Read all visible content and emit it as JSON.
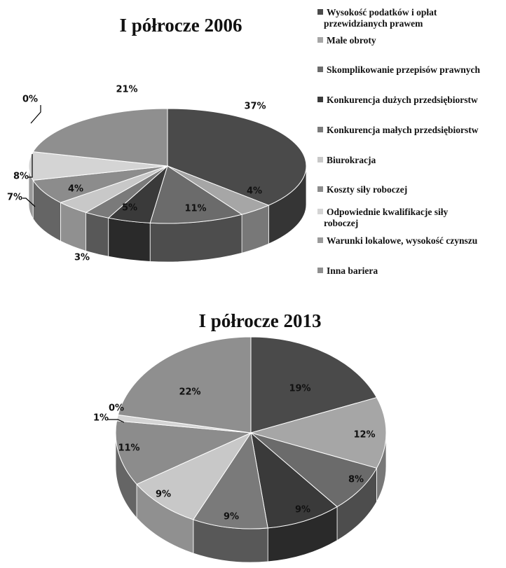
{
  "chart_data": [
    {
      "type": "pie",
      "title": "I półrocze 2006",
      "categories": [
        "Wysokość podatków i opłat przewidzianych prawem",
        "Małe obroty",
        "Skomplikowanie przepisów prawnych",
        "Konkurencja dużych przedsiębiorstw",
        "Konkurencja małych przedsiębiorstw",
        "Biurokracja",
        "Koszty siły roboczej",
        "Odpowiednie kwalifikacje siły roboczej",
        "Warunki lokalowe, wysokość czynszu",
        "Inna bariera"
      ],
      "values": [
        37,
        4,
        11,
        5,
        3,
        4,
        7,
        8,
        0,
        21
      ],
      "labels": [
        "37%",
        "4%",
        "11%",
        "5%",
        "3%",
        "4%",
        "7%",
        "8%",
        "0%",
        "21%"
      ],
      "legend_position": "right"
    },
    {
      "type": "pie",
      "title": "I półrocze 2013",
      "categories": [
        "Wysokość podatków i opłat przewidzianych prawem",
        "Małe obroty",
        "Skomplikowanie przepisów prawnych",
        "Konkurencja dużych przedsiębiorstw",
        "Konkurencja małych przedsiębiorstw",
        "Biurokracja",
        "Koszty siły roboczej",
        "Odpowiednie kwalifikacje siły roboczej",
        "Warunki lokalowe, wysokość czynszu",
        "Inna bariera"
      ],
      "values": [
        19,
        12,
        8,
        9,
        9,
        9,
        11,
        1,
        0,
        22
      ],
      "labels": [
        "19%",
        "12%",
        "8%",
        "9%",
        "9%",
        "9%",
        "11%",
        "1%",
        "0%",
        "22%"
      ]
    }
  ],
  "legend": [
    [
      "Wysokość podatków i opłat",
      "przewidzianych prawem"
    ],
    [
      "Małe obroty"
    ],
    [
      "Skomplikowanie przepisów prawnych"
    ],
    [
      "Konkurencja dużych przedsiębiorstw"
    ],
    [
      "Konkurencja małych przedsiębiorstw"
    ],
    [
      "Biurokracja"
    ],
    [
      "Koszty siły roboczej"
    ],
    [
      "Odpowiednie kwalifikacje siły",
      "roboczej"
    ],
    [
      "Warunki lokalowe, wysokość czynszu"
    ],
    [
      "Inna bariera"
    ]
  ],
  "colors": [
    "#4a4a4a",
    "#a6a6a6",
    "#6b6b6b",
    "#3a3a3a",
    "#7a7a7a",
    "#c8c8c8",
    "#8c8c8c",
    "#d4d4d4",
    "#9a9a9a",
    "#8f8f8f"
  ]
}
